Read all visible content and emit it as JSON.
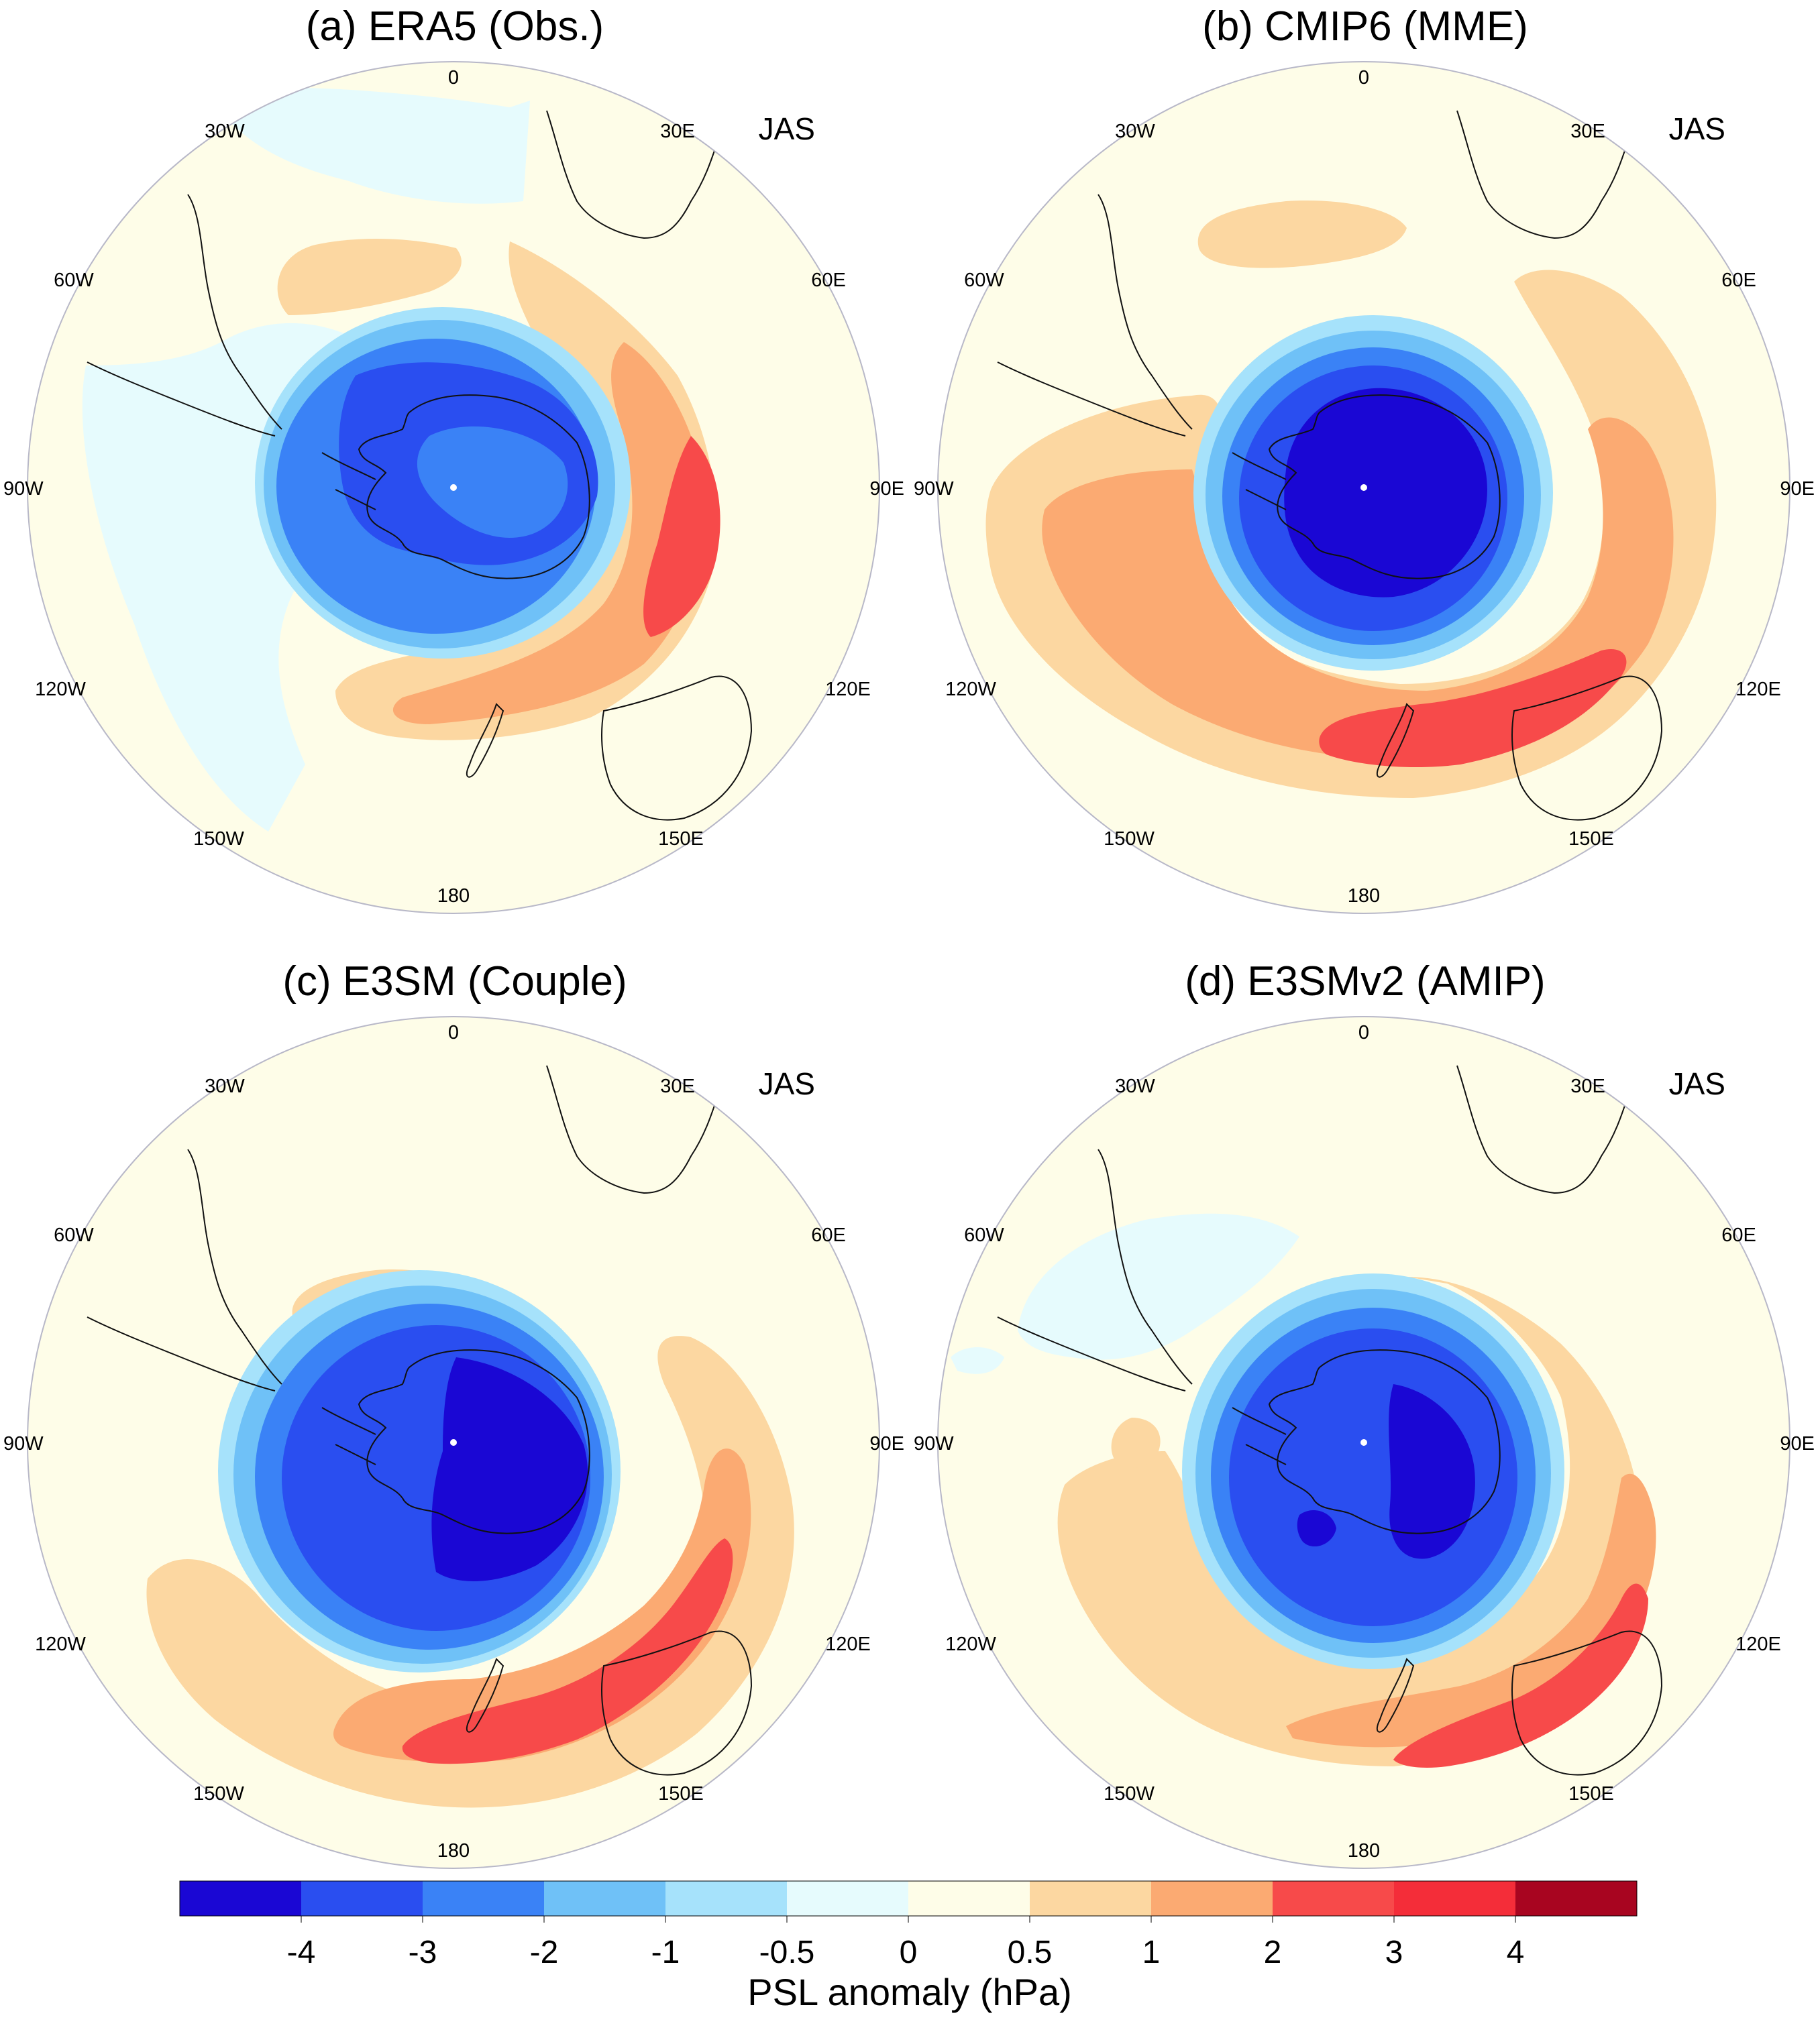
{
  "season": "JAS",
  "panels": [
    {
      "id": "a",
      "title": "(a) ERA5 (Obs.)"
    },
    {
      "id": "b",
      "title": "(b) CMIP6 (MME)"
    },
    {
      "id": "c",
      "title": "(c) E3SM (Couple)"
    },
    {
      "id": "d",
      "title": "(d) E3SMv2 (AMIP)"
    }
  ],
  "longitude_labels": [
    "0",
    "30E",
    "60E",
    "90E",
    "120E",
    "150E",
    "180",
    "150W",
    "120W",
    "90W",
    "60W",
    "30W"
  ],
  "colorbar": {
    "title": "PSL anomaly (hPa)",
    "ticks": [
      "-4",
      "-3",
      "-2",
      "-1",
      "-0.5",
      "0",
      "0.5",
      "1",
      "2",
      "3",
      "4"
    ],
    "colors": [
      "#1a07d4",
      "#2a4ef0",
      "#3a82f6",
      "#6fc1f7",
      "#a6e2fb",
      "#e6fbfd",
      "#fefde8",
      "#fcd7a1",
      "#fbaa72",
      "#f74a4a",
      "#f42d39",
      "#a80520"
    ]
  },
  "palette": {
    "n4": "#1a07d4",
    "n3": "#2a4ef0",
    "n2": "#3a82f6",
    "n1": "#6fc1f7",
    "n05": "#a6e2fb",
    "n0": "#e6fbfd",
    "p0": "#fefde8",
    "p05": "#fcd7a1",
    "p1": "#fbaa72",
    "p2": "#f74a4a",
    "p3": "#f42d39"
  }
}
